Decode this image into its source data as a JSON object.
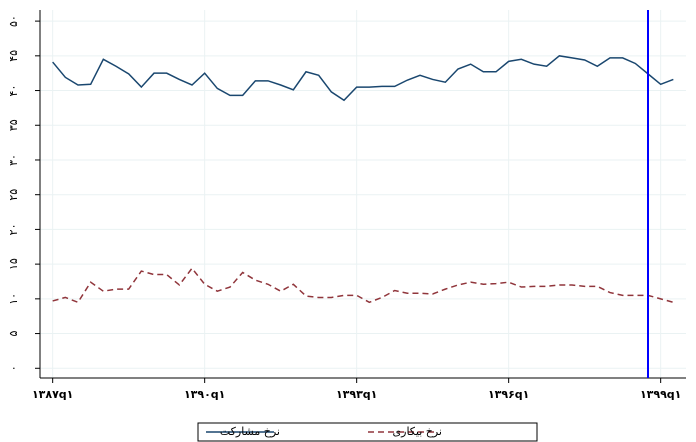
{
  "chart_data": {
    "type": "line",
    "categories": [
      "۱۳۸۷q۱",
      null,
      null,
      null,
      null,
      null,
      null,
      null,
      null,
      null,
      null,
      null,
      "۱۳۹۰q۱",
      null,
      null,
      null,
      null,
      null,
      null,
      null,
      null,
      null,
      null,
      null,
      "۱۳۹۳q۱",
      null,
      null,
      null,
      null,
      null,
      null,
      null,
      null,
      null,
      null,
      null,
      "۱۳۹۶q۱",
      null,
      null,
      null,
      null,
      null,
      null,
      null,
      null,
      null,
      null,
      null,
      "۱۳۹۹q۱",
      null
    ],
    "xlim": [
      -1,
      50
    ],
    "ylim": [
      -1.4,
      51.6
    ],
    "yticks": [
      {
        "value": 0,
        "label": "۰"
      },
      {
        "value": 5,
        "label": "۵"
      },
      {
        "value": 10,
        "label": "۱۰"
      },
      {
        "value": 15,
        "label": "۱۵"
      },
      {
        "value": 20,
        "label": "۲۰"
      },
      {
        "value": 25,
        "label": "۲۵"
      },
      {
        "value": 30,
        "label": "۳۰"
      },
      {
        "value": 35,
        "label": "۳۵"
      },
      {
        "value": 40,
        "label": "۴۰"
      },
      {
        "value": 45,
        "label": "۴۵"
      },
      {
        "value": 50,
        "label": "۵۰"
      }
    ],
    "grid": true,
    "vline_x": 47,
    "vline_color": "#0000ff",
    "series": [
      {
        "name": "نرخ مشارکت",
        "color": "#1a476f",
        "dash": "solid",
        "values": [
          44.1,
          41.9,
          40.8,
          40.9,
          44.5,
          43.5,
          42.4,
          40.5,
          42.5,
          42.5,
          41.6,
          40.8,
          42.5,
          40.3,
          39.3,
          39.3,
          41.4,
          41.4,
          40.8,
          40.1,
          42.7,
          42.2,
          39.8,
          38.6,
          40.5,
          40.5,
          40.6,
          40.6,
          41.5,
          42.2,
          41.6,
          41.2,
          43.1,
          43.8,
          42.7,
          42.7,
          44.2,
          44.5,
          43.8,
          43.5,
          45.0,
          44.7,
          44.4,
          43.5,
          44.7,
          44.7,
          43.9,
          42.4,
          40.9,
          41.6
        ]
      },
      {
        "name": "نرخ بیکاری",
        "color": "#90353b",
        "dash": "dashed",
        "values": [
          9.7,
          10.2,
          9.5,
          12.4,
          11.1,
          11.4,
          11.4,
          14.0,
          13.5,
          13.5,
          12.0,
          14.4,
          12.1,
          11.1,
          11.7,
          13.8,
          12.7,
          12.1,
          11.1,
          12.1,
          10.4,
          10.2,
          10.2,
          10.5,
          10.5,
          9.5,
          10.2,
          11.2,
          10.8,
          10.8,
          10.7,
          11.4,
          12.0,
          12.4,
          12.1,
          12.2,
          12.4,
          11.7,
          11.8,
          11.8,
          12.0,
          12.0,
          11.8,
          11.8,
          10.9,
          10.5,
          10.5,
          10.5,
          10.0,
          9.5
        ]
      }
    ]
  }
}
